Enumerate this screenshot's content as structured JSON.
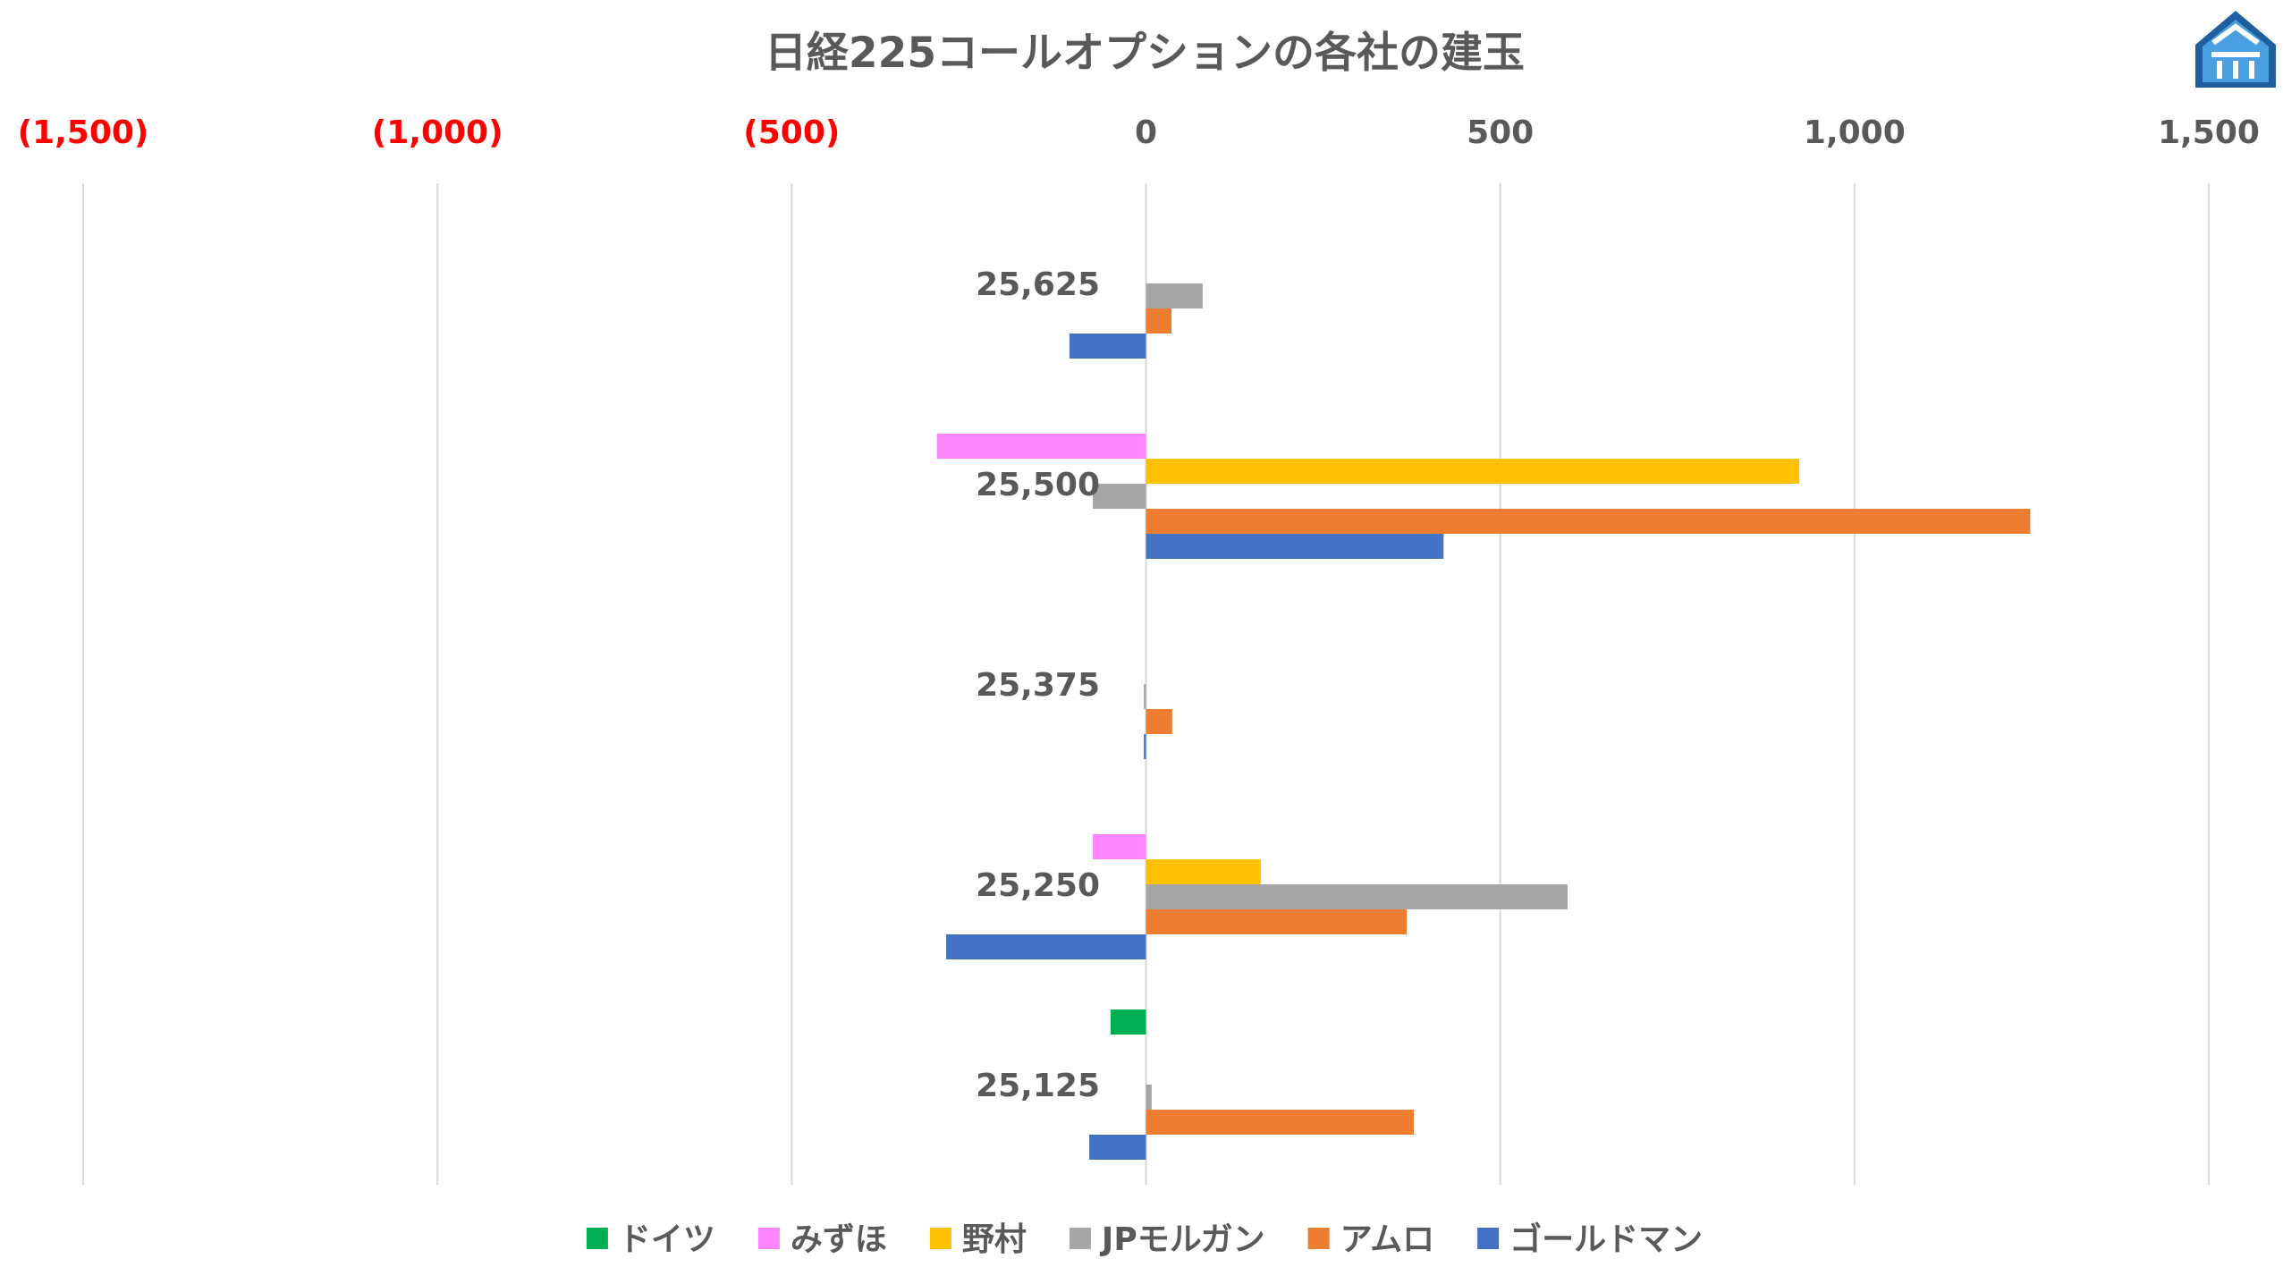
{
  "chart_data": {
    "type": "bar",
    "orientation": "horizontal",
    "title": "日経225コールオプションの各社の建玉",
    "xlim": [
      -1500,
      1500
    ],
    "x_ticks": [
      {
        "value": -1500,
        "label": "(1,500)",
        "color": "#ff0000"
      },
      {
        "value": -1000,
        "label": "(1,000)",
        "color": "#ff0000"
      },
      {
        "value": -500,
        "label": "(500)",
        "color": "#ff0000"
      },
      {
        "value": 0,
        "label": "0",
        "color": "#595959"
      },
      {
        "value": 500,
        "label": "500",
        "color": "#595959"
      },
      {
        "value": 1000,
        "label": "1,000",
        "color": "#595959"
      },
      {
        "value": 1500,
        "label": "1,500",
        "color": "#595959"
      }
    ],
    "grid": true,
    "x_axis_position": "top",
    "legend_position": "bottom",
    "categories": [
      "25,625",
      "25,500",
      "25,375",
      "25,250",
      "25,125"
    ],
    "series": [
      {
        "name": "ドイツ",
        "color": "#00b050",
        "values": [
          0,
          0,
          0,
          0,
          -50
        ]
      },
      {
        "name": "みずほ",
        "color": "#ff85ff",
        "values": [
          0,
          -295,
          0,
          -75,
          0
        ]
      },
      {
        "name": "野村",
        "color": "#ffc000",
        "values": [
          0,
          922,
          0,
          162,
          0
        ]
      },
      {
        "name": "JPモルガン",
        "color": "#a5a5a5",
        "values": [
          80,
          -75,
          -3,
          595,
          8
        ]
      },
      {
        "name": "アムロ",
        "color": "#ed7d31",
        "values": [
          36,
          1248,
          37,
          368,
          378
        ]
      },
      {
        "name": "ゴールドマン",
        "color": "#4472c4",
        "values": [
          -108,
          420,
          -3,
          -282,
          -80
        ]
      }
    ]
  },
  "logo": {
    "name": "shield-logo",
    "color": "#2e75b6"
  }
}
